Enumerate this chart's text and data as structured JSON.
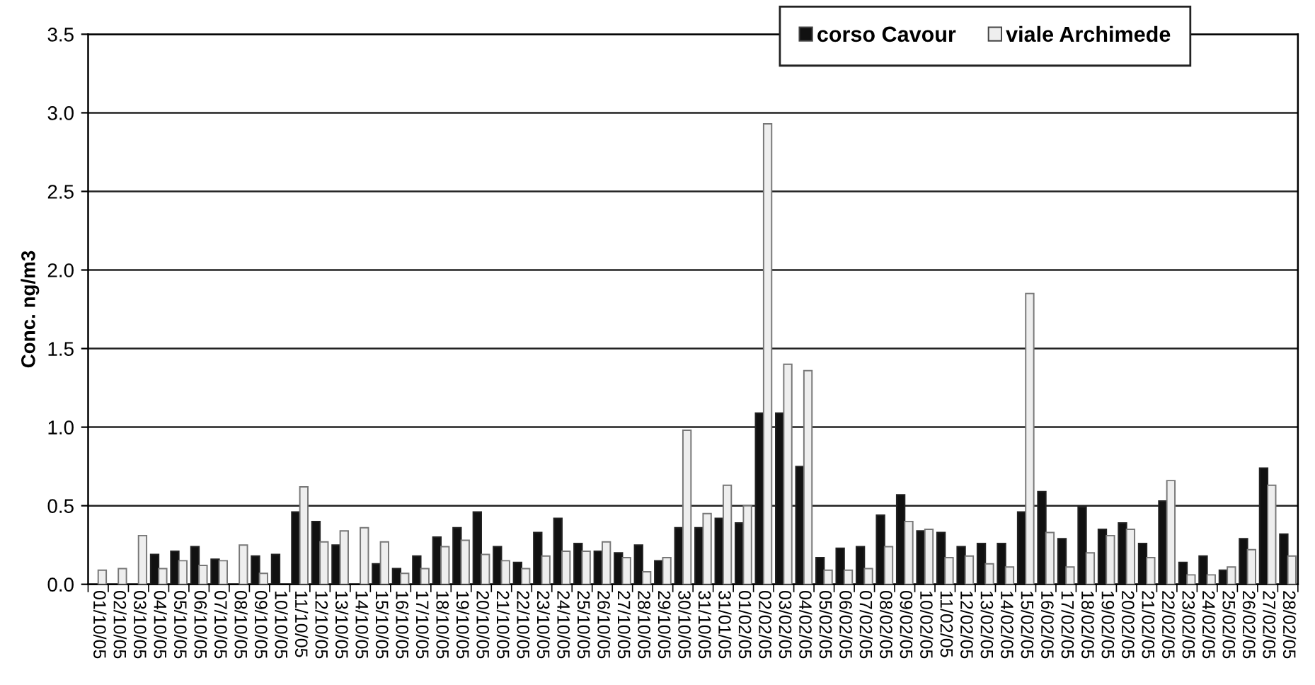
{
  "chart_data": {
    "type": "bar",
    "ylabel": "Conc. ng/m3",
    "categories": [
      "01/10/05",
      "02/10/05",
      "03/10/05",
      "04/10/05",
      "05/10/05",
      "06/10/05",
      "07/10/05",
      "08/10/05",
      "09/10/05",
      "10/10/05",
      "11/10/05",
      "12/10/05",
      "13/10/05",
      "14/10/05",
      "15/10/05",
      "16/10/05",
      "17/10/05",
      "18/10/05",
      "19/10/05",
      "20/10/05",
      "21/10/05",
      "22/10/05",
      "23/10/05",
      "24/10/05",
      "25/10/05",
      "26/10/05",
      "27/10/05",
      "28/10/05",
      "29/10/05",
      "30/10/05",
      "31/10/05",
      "31/01/05",
      "01/02/05",
      "02/02/05",
      "03/02/05",
      "04/02/05",
      "05/02/05",
      "06/02/05",
      "07/02/05",
      "08/02/05",
      "09/02/05",
      "10/02/05",
      "11/02/05",
      "12/02/05",
      "13/02/05",
      "14/02/05",
      "15/02/05",
      "16/02/05",
      "17/02/05",
      "18/02/05",
      "19/02/05",
      "20/02/05",
      "21/02/05",
      "22/02/05",
      "23/02/05",
      "24/02/05",
      "25/02/05",
      "26/02/05",
      "27/02/05",
      "28/02/05"
    ],
    "series": [
      {
        "name": "corso Cavour",
        "color": "#111111",
        "values": [
          null,
          null,
          null,
          0.19,
          0.21,
          0.24,
          0.16,
          null,
          0.18,
          0.19,
          0.46,
          0.4,
          0.25,
          null,
          0.13,
          0.1,
          0.18,
          0.3,
          0.36,
          0.46,
          0.24,
          0.14,
          0.33,
          0.42,
          0.26,
          0.21,
          0.2,
          0.25,
          0.15,
          0.36,
          0.36,
          0.42,
          0.39,
          1.09,
          1.09,
          0.75,
          0.17,
          0.23,
          0.24,
          0.44,
          0.57,
          0.34,
          0.33,
          0.24,
          0.26,
          0.26,
          0.46,
          0.59,
          0.29,
          0.49,
          0.35,
          0.39,
          0.26,
          0.53,
          0.14,
          0.18,
          0.09,
          0.29,
          0.74,
          0.32
        ]
      },
      {
        "name": "viale Archimede",
        "color": "#eeeeee",
        "values": [
          0.09,
          0.1,
          0.31,
          0.1,
          0.15,
          0.12,
          0.15,
          0.25,
          0.07,
          null,
          0.62,
          0.27,
          0.34,
          0.36,
          0.27,
          0.07,
          0.1,
          0.24,
          0.28,
          0.19,
          0.15,
          0.1,
          0.18,
          0.21,
          0.21,
          0.27,
          0.17,
          0.08,
          0.17,
          0.98,
          0.45,
          0.63,
          0.5,
          2.93,
          1.4,
          1.36,
          0.09,
          0.09,
          0.1,
          0.24,
          0.4,
          0.35,
          0.17,
          0.18,
          0.13,
          0.11,
          1.85,
          0.33,
          0.11,
          0.2,
          0.31,
          0.35,
          0.17,
          0.66,
          0.06,
          0.06,
          0.11,
          0.22,
          0.63,
          0.18
        ]
      }
    ],
    "ylim": [
      0,
      3.5
    ],
    "yticks": [
      {
        "value": 0,
        "label": "0.0"
      },
      {
        "value": 0.5,
        "label": "0.5"
      },
      {
        "value": 1,
        "label": "1.0"
      },
      {
        "value": 1.5,
        "label": "1.5"
      },
      {
        "value": 2,
        "label": "2.0"
      },
      {
        "value": 2.5,
        "label": "2.5"
      },
      {
        "value": 3,
        "label": "3.0"
      },
      {
        "value": 3.5,
        "label": "3.5"
      }
    ],
    "grid": "y",
    "legend": "top right"
  }
}
